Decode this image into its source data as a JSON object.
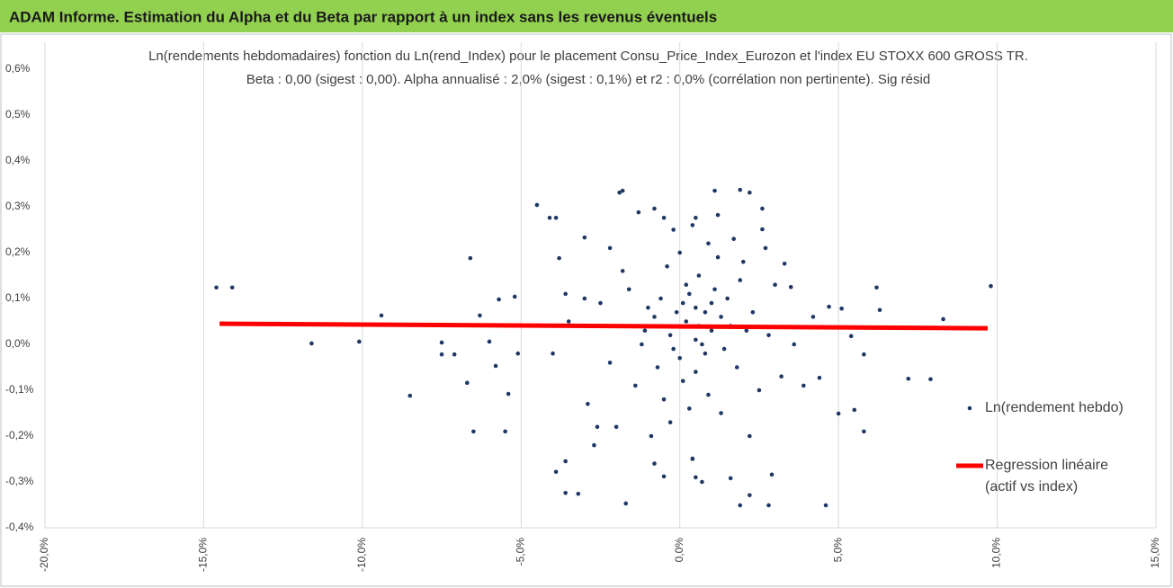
{
  "chart_data": {
    "type": "scatter",
    "banner": "ADAM Informe. Estimation du Alpha et du Beta par rapport à un index sans les revenus éventuels",
    "title": "Ln(rendements hebdomadaires) fonction du Ln(rend_Index) pour le placement Consu_Price_Index_Eurozon et l'index EU STOXX 600 GROSS TR.",
    "subtitle": "Beta : 0,00 (sigest : 0,00). Alpha annualisé : 2,0% (sigest : 0,1%) et r2 : 0,0% (corrélation non pertinente). Sig résid",
    "xlim": [
      -20,
      15
    ],
    "ylim": [
      -0.4,
      0.6
    ],
    "xticks": [
      {
        "value": -20,
        "label": "-20,0%"
      },
      {
        "value": -15,
        "label": "-15,0%"
      },
      {
        "value": -10,
        "label": "-10,0%"
      },
      {
        "value": -5,
        "label": "-5,0%"
      },
      {
        "value": 0,
        "label": "0,0%"
      },
      {
        "value": 5,
        "label": "5,0%"
      },
      {
        "value": 10,
        "label": "10,0%"
      },
      {
        "value": 15,
        "label": "15,0%"
      }
    ],
    "yticks": [
      {
        "value": -0.4,
        "label": "-0,4%"
      },
      {
        "value": -0.3,
        "label": "-0,3%"
      },
      {
        "value": -0.2,
        "label": "-0,2%"
      },
      {
        "value": -0.1,
        "label": "-0,1%"
      },
      {
        "value": 0,
        "label": "0,0%"
      },
      {
        "value": 0.1,
        "label": "0,1%"
      },
      {
        "value": 0.2,
        "label": "0,2%"
      },
      {
        "value": 0.3,
        "label": "0,3%"
      },
      {
        "value": 0.4,
        "label": "0,4%"
      },
      {
        "value": 0.5,
        "label": "0,5%"
      },
      {
        "value": 0.6,
        "label": "0,6%"
      }
    ],
    "grid": true,
    "series": [
      {
        "name": "Ln(rendement hebdo)",
        "color": "#1f3864",
        "mode": "markers",
        "x": [
          -14.6,
          -14.1,
          -11.6,
          -10.1,
          -9.4,
          -8.5,
          -7.5,
          -7.5,
          -7.1,
          -6.7,
          -6.6,
          -6.5,
          -6.3,
          -6.0,
          -5.8,
          -5.7,
          -5.5,
          -5.4,
          -5.1,
          -5.2,
          -4.5,
          -4.1,
          -3.9,
          -3.8,
          -3.6,
          -3.9,
          -3.6,
          -3.2,
          -3.6,
          -3.0,
          -2.6,
          -2.2,
          -1.9,
          -1.8,
          -1.7,
          -1.3,
          -0.8,
          -0.5,
          -0.5,
          0.5,
          0.4,
          0.5,
          1.1,
          1.2,
          1.6,
          1.9,
          2.2,
          1.9,
          2.2,
          2.6,
          2.6,
          2.9,
          2.8,
          3.3,
          3.5,
          3.9,
          4.4,
          4.6,
          4.7,
          5.0,
          5.1,
          5.4,
          5.5,
          5.8,
          5.8,
          6.2,
          6.3,
          7.2,
          7.9,
          8.3,
          9.8,
          0.2,
          0.5,
          -0.3,
          1.0,
          0.8,
          -0.8,
          1.5,
          -1.2,
          0.1,
          0.6,
          -0.5,
          1.8,
          2.3,
          -1.6,
          0.0,
          0.9,
          -0.9,
          1.3,
          2.0,
          -2.2,
          0.4,
          -0.2,
          1.1,
          0.7,
          -0.6,
          0.3,
          1.6,
          -1.0,
          2.5,
          -2.5,
          0.5,
          0.2,
          -0.4,
          1.2,
          0.8,
          -1.4,
          1.9,
          0.0,
          -0.1,
          0.6,
          1.4,
          -0.7,
          2.8,
          -2.9,
          3.0,
          0.9,
          -1.8,
          0.4,
          -0.3,
          1.7,
          2.2,
          -2.0,
          0.1,
          0.5,
          1.0,
          -0.2,
          0.3,
          1.3,
          -1.1,
          2.1,
          -3.5,
          -4.0,
          3.6,
          4.2,
          -3.0,
          3.2,
          -2.7,
          2.7,
          0.7,
          -0.8
        ],
        "y": [
          0.124,
          0.124,
          0.002,
          0.006,
          0.063,
          -0.112,
          0.004,
          -0.022,
          -0.022,
          -0.084,
          0.188,
          -0.19,
          0.063,
          0.006,
          -0.047,
          0.098,
          -0.19,
          -0.108,
          -0.02,
          0.104,
          0.304,
          0.276,
          0.276,
          0.188,
          0.11,
          -0.278,
          -0.324,
          -0.326,
          -0.255,
          0.233,
          -0.18,
          0.21,
          0.331,
          0.335,
          -0.347,
          0.288,
          0.296,
          0.276,
          -0.288,
          0.276,
          -0.249,
          -0.29,
          0.335,
          0.282,
          -0.292,
          0.337,
          0.331,
          -0.351,
          -0.329,
          0.296,
          0.251,
          -0.284,
          -0.351,
          0.176,
          0.125,
          -0.09,
          -0.073,
          -0.351,
          0.082,
          -0.151,
          0.078,
          0.018,
          -0.143,
          -0.19,
          -0.022,
          0.124,
          0.075,
          -0.075,
          -0.076,
          0.055,
          0.127,
          0.05,
          0.08,
          0.02,
          0.03,
          -0.02,
          0.06,
          0.1,
          0.0,
          -0.08,
          0.15,
          -0.12,
          -0.05,
          0.07,
          0.12,
          0.2,
          0.22,
          -0.2,
          -0.15,
          0.18,
          -0.04,
          -0.25,
          0.25,
          0.12,
          0.0,
          0.1,
          0.11,
          0.04,
          0.08,
          -0.1,
          0.09,
          -0.06,
          0.13,
          0.17,
          0.19,
          0.07,
          -0.09,
          0.14,
          -0.03,
          0.07,
          0.04,
          -0.01,
          -0.05,
          0.02,
          -0.13,
          0.13,
          -0.11,
          0.16,
          0.26,
          -0.17,
          0.23,
          -0.2,
          -0.18,
          0.09,
          0.01,
          0.09,
          -0.01,
          -0.14,
          0.06,
          0.03,
          0.03,
          0.05,
          -0.02,
          0.0,
          0.06,
          0.1,
          -0.07,
          -0.22,
          0.21,
          -0.3,
          -0.26
        ]
      },
      {
        "name": "Regression linéaire (actif vs index)",
        "color": "#ff0000",
        "mode": "line",
        "x": [
          -14.5,
          9.7
        ],
        "y": [
          0.045,
          0.035
        ]
      }
    ]
  }
}
